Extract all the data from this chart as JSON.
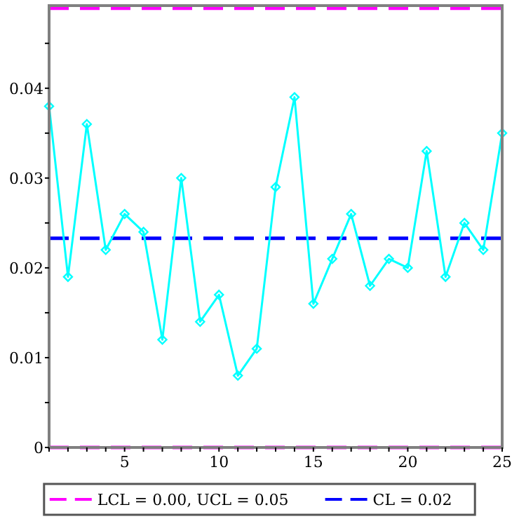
{
  "chart_data": {
    "type": "line",
    "x": [
      1,
      2,
      3,
      4,
      5,
      6,
      7,
      8,
      9,
      10,
      11,
      12,
      13,
      14,
      15,
      16,
      17,
      18,
      19,
      20,
      21,
      22,
      23,
      24,
      25
    ],
    "series": [
      {
        "color": "#00ffff",
        "values": [
          0.038,
          0.019,
          0.036,
          0.022,
          0.026,
          0.024,
          0.012,
          0.03,
          0.014,
          0.017,
          0.008,
          0.011,
          0.029,
          0.039,
          0.016,
          0.021,
          0.026,
          0.018,
          0.021,
          0.02,
          0.033,
          0.019,
          0.025,
          0.022,
          0.035
        ]
      }
    ],
    "marker": "diamond",
    "line_style": "solid",
    "xlim": [
      1,
      25
    ],
    "ylim": [
      0,
      0.0492
    ],
    "xticks": [
      {
        "value": 1,
        "label": null
      },
      {
        "value": 2,
        "label": null
      },
      {
        "value": 3,
        "label": null
      },
      {
        "value": 4,
        "label": null
      },
      5,
      {
        "value": 6,
        "label": null
      },
      {
        "value": 7,
        "label": null
      },
      {
        "value": 8,
        "label": null
      },
      {
        "value": 9,
        "label": null
      },
      10,
      {
        "value": 11,
        "label": null
      },
      {
        "value": 12,
        "label": null
      },
      {
        "value": 13,
        "label": null
      },
      {
        "value": 14,
        "label": null
      },
      15,
      {
        "value": 16,
        "label": null
      },
      {
        "value": 17,
        "label": null
      },
      {
        "value": 18,
        "label": null
      },
      {
        "value": 19,
        "label": null
      },
      20,
      {
        "value": 21,
        "label": null
      },
      {
        "value": 22,
        "label": null
      },
      {
        "value": 23,
        "label": null
      },
      {
        "value": 24,
        "label": null
      },
      25
    ],
    "yticks": [
      0,
      {
        "value": 0.005,
        "label": null
      },
      0.01,
      {
        "value": 0.015,
        "label": null
      },
      0.02,
      {
        "value": 0.025,
        "label": null
      },
      0.03,
      {
        "value": 0.035,
        "label": null
      },
      0.04,
      {
        "value": 0.045,
        "label": null
      }
    ],
    "ref_lines": [
      {
        "axis": "y",
        "value": 0,
        "label": "LCL = 0.00, UCL = 0.05",
        "color": "#ff00ff",
        "line_style": "dashed"
      },
      {
        "axis": "y",
        "value": 0.0489,
        "label": null,
        "color": "#ff00ff",
        "line_style": "dashed"
      },
      {
        "axis": "y",
        "value": 0.0233,
        "label": "CL = 0.02",
        "color": "#0000ff",
        "line_style": "dashed"
      }
    ],
    "legend": "bottom",
    "grid": false
  }
}
